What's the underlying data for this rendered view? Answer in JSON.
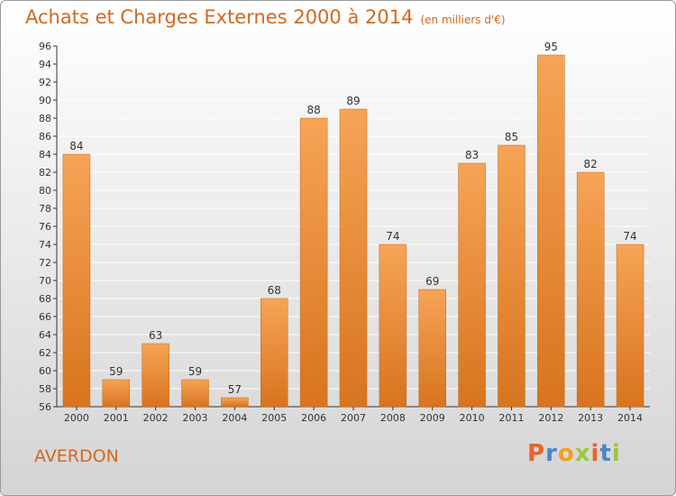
{
  "title": "Achats et Charges Externes 2000 à 2014",
  "subtitle": "(en milliers d'€)",
  "commune": "AVERDON",
  "logo": {
    "letters": [
      "P",
      "r",
      "o",
      "x",
      "i",
      "t",
      "i"
    ],
    "colors": [
      "#e8642a",
      "#4a86c8",
      "#f0a020",
      "#9ac83a",
      "#e8642a",
      "#4a86c8",
      "#9ac83a"
    ]
  },
  "colors": {
    "accent": "#d2691e",
    "bar_top": "#f6a456",
    "bar_bottom": "#d8741e",
    "grid": "#ffffff",
    "axis": "#333333"
  },
  "chart_data": {
    "type": "bar",
    "title": "Achats et Charges Externes 2000 à 2014",
    "subtitle": "(en milliers d'€)",
    "categories": [
      "2000",
      "2001",
      "2002",
      "2003",
      "2004",
      "2005",
      "2006",
      "2007",
      "2008",
      "2009",
      "2010",
      "2011",
      "2012",
      "2013",
      "2014"
    ],
    "values": [
      84,
      59,
      63,
      59,
      57,
      68,
      88,
      89,
      74,
      69,
      83,
      85,
      95,
      82,
      74
    ],
    "ylim": [
      56,
      96
    ],
    "yticks": [
      56,
      58,
      60,
      62,
      64,
      66,
      68,
      70,
      72,
      74,
      76,
      78,
      80,
      82,
      84,
      86,
      88,
      90,
      92,
      94,
      96
    ],
    "grid": true,
    "data_labels": true,
    "xlabel": "",
    "ylabel": ""
  }
}
